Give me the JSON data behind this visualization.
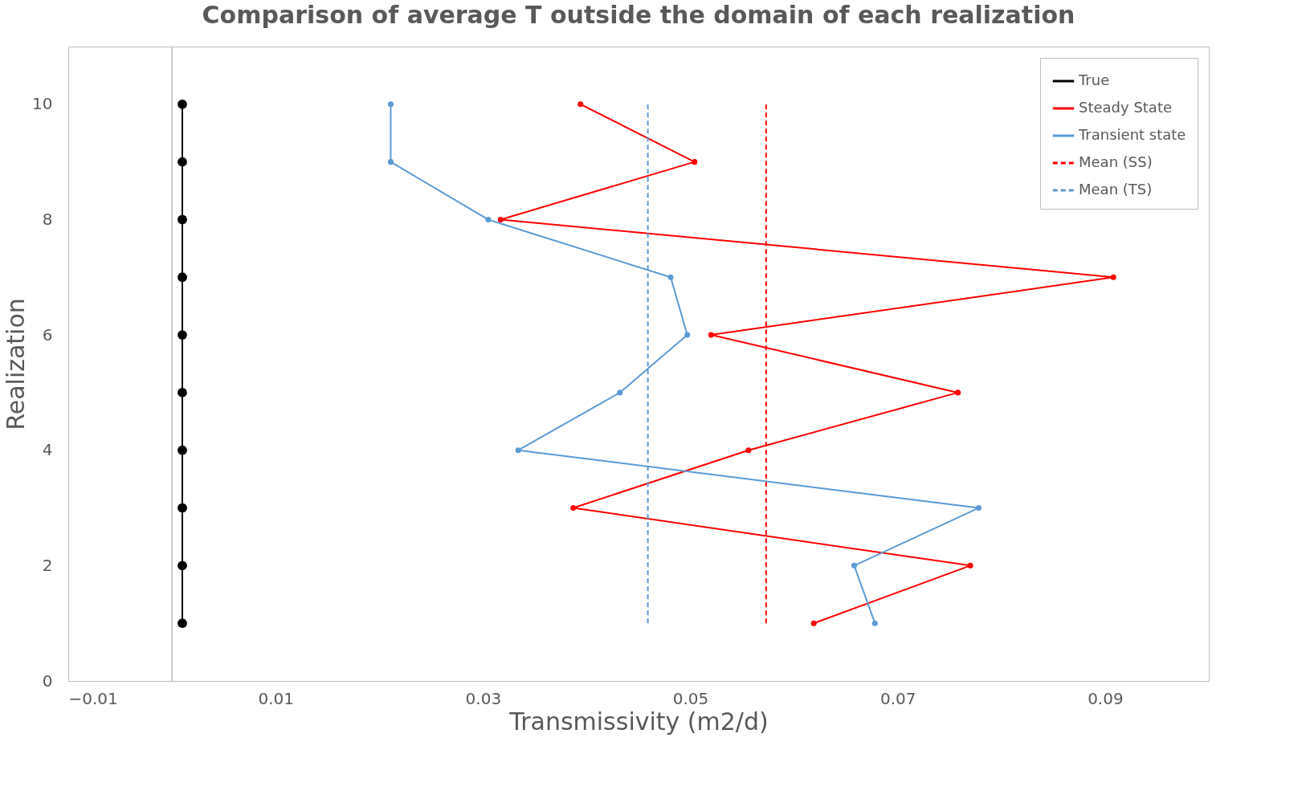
{
  "chart_data": {
    "type": "line",
    "title": "Comparison of average T outside the domain of each realization",
    "xlabel": "Transmissivity (m2/d)",
    "ylabel": "Realization",
    "xlim": [
      -0.01,
      0.1
    ],
    "xticks": [
      -0.01,
      0.01,
      0.03,
      0.05,
      0.07,
      0.09
    ],
    "ylim": [
      0,
      11
    ],
    "yticks": [
      0,
      2,
      4,
      6,
      8,
      10
    ],
    "grid": false,
    "legend": "top right",
    "ref_lines": [
      {
        "axis": "x",
        "value": 0,
        "color": "#bfbfbf"
      }
    ],
    "series": [
      {
        "name": "True",
        "color": "#000000",
        "marker": "circle",
        "line_style": "solid",
        "x": [
          0.001,
          0.001,
          0.001,
          0.001,
          0.001,
          0.001,
          0.001,
          0.001,
          0.001,
          0.001
        ],
        "values": [
          10,
          9,
          8,
          7,
          6,
          5,
          4,
          3,
          2,
          1
        ]
      },
      {
        "name": "Steady State",
        "color": "#ff0000",
        "marker": "circle",
        "line_style": "solid",
        "x": [
          0.0394,
          0.0504,
          0.0317,
          0.0908,
          0.052,
          0.0758,
          0.0556,
          0.0387,
          0.077,
          0.0619
        ],
        "values": [
          10,
          9,
          8,
          7,
          6,
          5,
          4,
          3,
          2,
          1
        ]
      },
      {
        "name": "Transient state",
        "color": "#5b9bd5",
        "marker": "circle",
        "line_style": "solid",
        "x": [
          0.0211,
          0.0211,
          0.0305,
          0.0481,
          0.0497,
          0.0432,
          0.0334,
          0.0778,
          0.0658,
          0.0678
        ],
        "values": [
          10,
          9,
          8,
          7,
          6,
          5,
          4,
          3,
          2,
          1
        ]
      },
      {
        "name": "Mean (SS)",
        "color": "#ff0000",
        "marker": "none",
        "line_style": "dashed",
        "x": [
          0.0573,
          0.0573
        ],
        "values": [
          1,
          10
        ]
      },
      {
        "name": "Mean (TS)",
        "color": "#5b9bd5",
        "marker": "none",
        "line_style": "dashed",
        "x": [
          0.0459,
          0.0459
        ],
        "values": [
          1,
          10
        ]
      }
    ]
  }
}
